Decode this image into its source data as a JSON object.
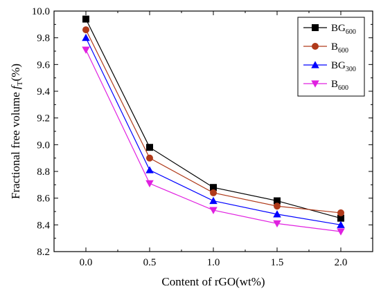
{
  "chart_data": {
    "type": "line",
    "title": "",
    "xlabel": "Content of rGO(wt%)",
    "ylabel": {
      "main": "Fractional free volume ",
      "symbol": "f",
      "subscript": "T",
      "unit": "(%)"
    },
    "xlim": [
      -0.25,
      2.25
    ],
    "ylim": [
      8.2,
      10.0
    ],
    "xticks": [
      "0.0",
      "0.5",
      "1.0",
      "1.5",
      "2.0"
    ],
    "yticks": [
      "8.2",
      "8.4",
      "8.6",
      "8.8",
      "9.0",
      "9.2",
      "9.4",
      "9.6",
      "9.8",
      "10.0"
    ],
    "grid": false,
    "legend_position": "top-right",
    "x": [
      0.0,
      0.5,
      1.0,
      1.5,
      2.0
    ],
    "series": [
      {
        "name": "BG",
        "subscript": "600",
        "marker": "square",
        "color": "#000000",
        "values": [
          9.94,
          8.98,
          8.68,
          8.58,
          8.45
        ]
      },
      {
        "name": "B",
        "subscript": "600",
        "marker": "circle",
        "color": "#b03a1a",
        "values": [
          9.86,
          8.9,
          8.64,
          8.54,
          8.49
        ]
      },
      {
        "name": "BG",
        "subscript": "300",
        "marker": "triangle-up",
        "color": "#0000ff",
        "values": [
          9.8,
          8.81,
          8.58,
          8.48,
          8.4
        ]
      },
      {
        "name": "B",
        "subscript": "600",
        "marker": "triangle-down",
        "color": "#e020e0",
        "values": [
          9.71,
          8.71,
          8.51,
          8.41,
          8.35
        ]
      }
    ]
  }
}
